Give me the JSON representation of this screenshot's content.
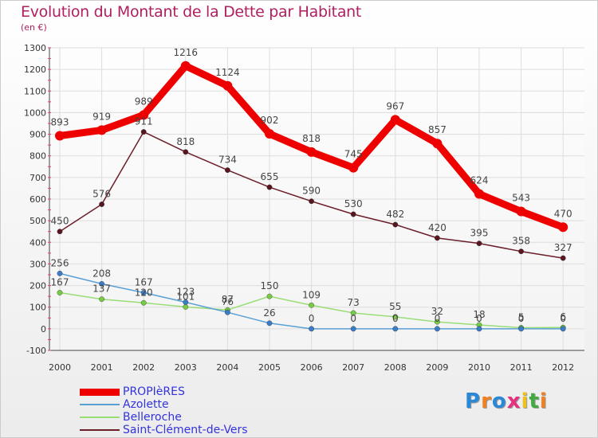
{
  "title": "Evolution du Montant de la Dette par Habitant",
  "unit_label": "(en €)",
  "chart_data": {
    "type": "line",
    "title": "Evolution du Montant de la Dette par Habitant",
    "ylabel": "(en €)",
    "xlabel": "",
    "x": [
      "2000",
      "2001",
      "2002",
      "2003",
      "2004",
      "2005",
      "2006",
      "2007",
      "2008",
      "2009",
      "2010",
      "2011",
      "2012"
    ],
    "ylim": [
      -100,
      1300
    ],
    "yticks": [
      "-100",
      "0",
      "100",
      "200",
      "300",
      "400",
      "500",
      "600",
      "700",
      "800",
      "900",
      "1000",
      "1100",
      "1200",
      "1300"
    ],
    "grid": true,
    "legend_position": "bottom-left",
    "series": [
      {
        "name": "PROPIèRES",
        "color": "#ee0000",
        "values": [
          893,
          919,
          989,
          1216,
          1124,
          902,
          818,
          745,
          967,
          857,
          624,
          543,
          470
        ]
      },
      {
        "name": "Azolette",
        "color": "#5a9fd4",
        "values": [
          256,
          208,
          167,
          123,
          76,
          26,
          0,
          0,
          0,
          0,
          0,
          0,
          0
        ]
      },
      {
        "name": "Belleroche",
        "color": "#99dd77",
        "values": [
          167,
          137,
          120,
          101,
          87,
          150,
          109,
          73,
          55,
          32,
          18,
          5,
          6
        ]
      },
      {
        "name": "Saint-Clément-de-Vers",
        "color": "#6b1e2a",
        "values": [
          450,
          576,
          911,
          818,
          734,
          655,
          590,
          530,
          482,
          420,
          395,
          358,
          327
        ]
      }
    ]
  },
  "logo": {
    "letters": [
      "P",
      "r",
      "o",
      "x",
      "i",
      "t",
      "i"
    ],
    "colors": [
      "#2a88d8",
      "#f08020",
      "#2a88d8",
      "#e83080",
      "#f0c020",
      "#44aa44",
      "#f08020"
    ]
  }
}
